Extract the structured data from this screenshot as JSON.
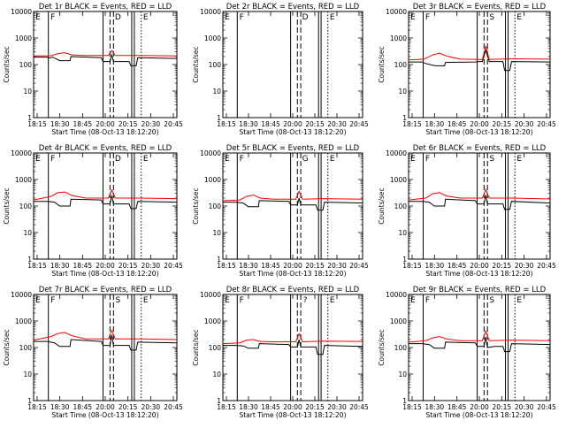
{
  "chart_data": {
    "type": "line",
    "x_ticks": [
      "18:15",
      "18:30",
      "18:45",
      "20:00",
      "20:15",
      "20:30",
      "20:45"
    ],
    "xlabel": "Start Time (08-Oct-13 18:12:20)",
    "ylabel": "Counts/sec",
    "y_scale": "log",
    "y_ticks": [
      "1",
      "10",
      "100",
      "1000",
      "10000"
    ],
    "ylim": [
      1,
      10000
    ],
    "xlim_minutes_after_start": [
      0,
      165
    ],
    "colors": {
      "events": "#000000",
      "lld": "#ff0000"
    },
    "markers": [
      {
        "label": "E",
        "style": "solid",
        "x_minutes": 0
      },
      {
        "label": "F",
        "style": "solid",
        "x_minutes": 17
      },
      {
        "label": "",
        "style": "solid",
        "x_minutes": 80
      },
      {
        "label": "",
        "style": "dashed",
        "x_minutes": 88
      },
      {
        "label": "D",
        "style": "dashed",
        "x_minutes": 92
      },
      {
        "label": "",
        "style": "solid",
        "x_minutes": 113
      },
      {
        "label": "",
        "style": "solid",
        "x_minutes": 116
      },
      {
        "label": "E",
        "style": "dotted",
        "x_minutes": 124
      }
    ],
    "panels": [
      {
        "title": "Det 1r BLACK = Events, RED = LLD",
        "marker_letter": "D",
        "events": [
          [
            0,
            190
          ],
          [
            16,
            190
          ],
          [
            17,
            175
          ],
          [
            22,
            190
          ],
          [
            30,
            140
          ],
          [
            42,
            140
          ],
          [
            43,
            200
          ],
          [
            78,
            180
          ],
          [
            80,
            130
          ],
          [
            88,
            130
          ],
          [
            90,
            230
          ],
          [
            92,
            130
          ],
          [
            110,
            130
          ],
          [
            112,
            90
          ],
          [
            118,
            90
          ],
          [
            120,
            180
          ],
          [
            165,
            170
          ]
        ],
        "lld": [
          [
            0,
            210
          ],
          [
            20,
            215
          ],
          [
            28,
            260
          ],
          [
            36,
            280
          ],
          [
            44,
            230
          ],
          [
            60,
            220
          ],
          [
            86,
            220
          ],
          [
            90,
            340
          ],
          [
            94,
            220
          ],
          [
            120,
            220
          ],
          [
            165,
            210
          ]
        ]
      },
      {
        "title": "Det 2r BLACK = Events, RED = LLD",
        "marker_letter": "D",
        "events": [],
        "lld": []
      },
      {
        "title": "Det 3r BLACK = Events, RED = LLD",
        "marker_letter": "S",
        "events": [
          [
            0,
            125
          ],
          [
            16,
            125
          ],
          [
            20,
            110
          ],
          [
            28,
            95
          ],
          [
            32,
            90
          ],
          [
            42,
            90
          ],
          [
            43,
            120
          ],
          [
            78,
            125
          ],
          [
            82,
            130
          ],
          [
            86,
            130
          ],
          [
            90,
            350
          ],
          [
            94,
            130
          ],
          [
            110,
            130
          ],
          [
            112,
            60
          ],
          [
            118,
            60
          ],
          [
            120,
            130
          ],
          [
            165,
            125
          ]
        ],
        "lld": [
          [
            0,
            150
          ],
          [
            18,
            160
          ],
          [
            28,
            230
          ],
          [
            36,
            270
          ],
          [
            44,
            210
          ],
          [
            60,
            160
          ],
          [
            86,
            155
          ],
          [
            90,
            500
          ],
          [
            94,
            155
          ],
          [
            120,
            165
          ],
          [
            165,
            160
          ]
        ]
      },
      {
        "title": "Det 4r BLACK = Events, RED = LLD",
        "marker_letter": "D",
        "events": [
          [
            0,
            150
          ],
          [
            16,
            150
          ],
          [
            24,
            140
          ],
          [
            30,
            100
          ],
          [
            42,
            100
          ],
          [
            43,
            180
          ],
          [
            78,
            170
          ],
          [
            80,
            120
          ],
          [
            88,
            120
          ],
          [
            90,
            250
          ],
          [
            92,
            120
          ],
          [
            110,
            120
          ],
          [
            112,
            80
          ],
          [
            118,
            80
          ],
          [
            120,
            150
          ],
          [
            165,
            140
          ]
        ],
        "lld": [
          [
            0,
            170
          ],
          [
            20,
            230
          ],
          [
            28,
            320
          ],
          [
            36,
            340
          ],
          [
            44,
            250
          ],
          [
            60,
            200
          ],
          [
            86,
            200
          ],
          [
            90,
            400
          ],
          [
            94,
            200
          ],
          [
            120,
            200
          ],
          [
            165,
            190
          ]
        ]
      },
      {
        "title": "Det 5r BLACK = Events, RED = LLD",
        "marker_letter": "G",
        "events": [
          [
            0,
            140
          ],
          [
            16,
            140
          ],
          [
            24,
            130
          ],
          [
            30,
            95
          ],
          [
            42,
            95
          ],
          [
            43,
            160
          ],
          [
            78,
            150
          ],
          [
            80,
            110
          ],
          [
            88,
            110
          ],
          [
            90,
            200
          ],
          [
            92,
            110
          ],
          [
            110,
            110
          ],
          [
            112,
            70
          ],
          [
            118,
            70
          ],
          [
            120,
            140
          ],
          [
            165,
            130
          ]
        ],
        "lld": [
          [
            0,
            160
          ],
          [
            20,
            170
          ],
          [
            28,
            230
          ],
          [
            36,
            260
          ],
          [
            44,
            200
          ],
          [
            60,
            180
          ],
          [
            86,
            180
          ],
          [
            90,
            360
          ],
          [
            94,
            180
          ],
          [
            120,
            190
          ],
          [
            165,
            180
          ]
        ]
      },
      {
        "title": "Det 6r BLACK = Events, RED = LLD",
        "marker_letter": "S",
        "events": [
          [
            0,
            150
          ],
          [
            16,
            150
          ],
          [
            24,
            140
          ],
          [
            30,
            100
          ],
          [
            42,
            100
          ],
          [
            43,
            180
          ],
          [
            78,
            160
          ],
          [
            80,
            120
          ],
          [
            88,
            120
          ],
          [
            90,
            260
          ],
          [
            92,
            120
          ],
          [
            110,
            120
          ],
          [
            112,
            75
          ],
          [
            118,
            75
          ],
          [
            120,
            150
          ],
          [
            165,
            130
          ]
        ],
        "lld": [
          [
            0,
            170
          ],
          [
            20,
            200
          ],
          [
            28,
            290
          ],
          [
            36,
            320
          ],
          [
            44,
            240
          ],
          [
            60,
            200
          ],
          [
            86,
            200
          ],
          [
            90,
            420
          ],
          [
            94,
            200
          ],
          [
            120,
            200
          ],
          [
            165,
            185
          ]
        ]
      },
      {
        "title": "Det 7r BLACK = Events, RED = LLD",
        "marker_letter": "S",
        "events": [
          [
            0,
            170
          ],
          [
            16,
            170
          ],
          [
            24,
            150
          ],
          [
            30,
            110
          ],
          [
            42,
            110
          ],
          [
            43,
            200
          ],
          [
            78,
            170
          ],
          [
            80,
            120
          ],
          [
            88,
            120
          ],
          [
            90,
            300
          ],
          [
            92,
            120
          ],
          [
            110,
            120
          ],
          [
            112,
            80
          ],
          [
            118,
            80
          ],
          [
            120,
            160
          ],
          [
            165,
            150
          ]
        ],
        "lld": [
          [
            0,
            190
          ],
          [
            20,
            260
          ],
          [
            28,
            340
          ],
          [
            36,
            370
          ],
          [
            44,
            280
          ],
          [
            60,
            210
          ],
          [
            86,
            210
          ],
          [
            90,
            440
          ],
          [
            94,
            210
          ],
          [
            120,
            210
          ],
          [
            165,
            200
          ]
        ]
      },
      {
        "title": "Det 8r BLACK = Events, RED = LLD",
        "marker_letter": "?",
        "events": [
          [
            0,
            120
          ],
          [
            16,
            120
          ],
          [
            24,
            115
          ],
          [
            30,
            95
          ],
          [
            42,
            95
          ],
          [
            43,
            140
          ],
          [
            78,
            130
          ],
          [
            80,
            105
          ],
          [
            88,
            105
          ],
          [
            90,
            200
          ],
          [
            92,
            105
          ],
          [
            110,
            105
          ],
          [
            112,
            55
          ],
          [
            118,
            55
          ],
          [
            120,
            120
          ],
          [
            165,
            110
          ]
        ],
        "lld": [
          [
            0,
            140
          ],
          [
            20,
            150
          ],
          [
            28,
            190
          ],
          [
            36,
            200
          ],
          [
            44,
            170
          ],
          [
            60,
            165
          ],
          [
            86,
            165
          ],
          [
            90,
            330
          ],
          [
            94,
            165
          ],
          [
            120,
            175
          ],
          [
            165,
            170
          ]
        ]
      },
      {
        "title": "Det 9r BLACK = Events, RED = LLD",
        "marker_letter": "S",
        "events": [
          [
            0,
            140
          ],
          [
            16,
            140
          ],
          [
            24,
            130
          ],
          [
            30,
            95
          ],
          [
            42,
            95
          ],
          [
            43,
            160
          ],
          [
            78,
            150
          ],
          [
            80,
            110
          ],
          [
            88,
            110
          ],
          [
            90,
            250
          ],
          [
            92,
            100
          ],
          [
            100,
            110
          ],
          [
            110,
            110
          ],
          [
            112,
            70
          ],
          [
            118,
            70
          ],
          [
            120,
            140
          ],
          [
            165,
            130
          ]
        ],
        "lld": [
          [
            0,
            160
          ],
          [
            20,
            180
          ],
          [
            28,
            230
          ],
          [
            36,
            260
          ],
          [
            44,
            210
          ],
          [
            60,
            180
          ],
          [
            86,
            180
          ],
          [
            90,
            420
          ],
          [
            94,
            180
          ],
          [
            120,
            190
          ],
          [
            165,
            180
          ]
        ]
      }
    ]
  }
}
